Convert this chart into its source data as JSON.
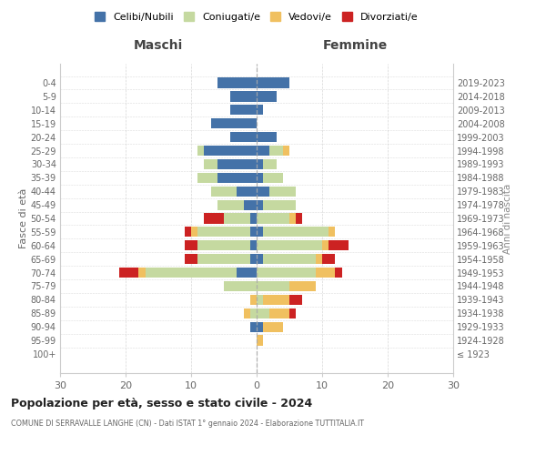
{
  "age_groups": [
    "100+",
    "95-99",
    "90-94",
    "85-89",
    "80-84",
    "75-79",
    "70-74",
    "65-69",
    "60-64",
    "55-59",
    "50-54",
    "45-49",
    "40-44",
    "35-39",
    "30-34",
    "25-29",
    "20-24",
    "15-19",
    "10-14",
    "5-9",
    "0-4"
  ],
  "birth_years": [
    "≤ 1923",
    "1924-1928",
    "1929-1933",
    "1934-1938",
    "1939-1943",
    "1944-1948",
    "1949-1953",
    "1954-1958",
    "1959-1963",
    "1964-1968",
    "1969-1973",
    "1974-1978",
    "1979-1983",
    "1984-1988",
    "1989-1993",
    "1994-1998",
    "1999-2003",
    "2004-2008",
    "2009-2013",
    "2014-2018",
    "2019-2023"
  ],
  "males": {
    "celibi": [
      0,
      0,
      1,
      0,
      0,
      0,
      3,
      1,
      1,
      1,
      1,
      2,
      3,
      6,
      6,
      8,
      4,
      7,
      4,
      4,
      6
    ],
    "coniugati": [
      0,
      0,
      0,
      1,
      0,
      5,
      14,
      8,
      8,
      8,
      4,
      4,
      4,
      3,
      2,
      1,
      0,
      0,
      0,
      0,
      0
    ],
    "vedovi": [
      0,
      0,
      0,
      1,
      1,
      0,
      1,
      0,
      0,
      1,
      0,
      0,
      0,
      0,
      0,
      0,
      0,
      0,
      0,
      0,
      0
    ],
    "divorziati": [
      0,
      0,
      0,
      0,
      0,
      0,
      3,
      2,
      2,
      1,
      3,
      0,
      0,
      0,
      0,
      0,
      0,
      0,
      0,
      0,
      0
    ]
  },
  "females": {
    "nubili": [
      0,
      0,
      1,
      0,
      0,
      0,
      0,
      1,
      0,
      1,
      0,
      1,
      2,
      1,
      1,
      2,
      3,
      0,
      1,
      3,
      5
    ],
    "coniugate": [
      0,
      0,
      0,
      2,
      1,
      5,
      9,
      8,
      10,
      10,
      5,
      5,
      4,
      3,
      2,
      2,
      0,
      0,
      0,
      0,
      0
    ],
    "vedove": [
      0,
      1,
      3,
      3,
      4,
      4,
      3,
      1,
      1,
      1,
      1,
      0,
      0,
      0,
      0,
      1,
      0,
      0,
      0,
      0,
      0
    ],
    "divorziate": [
      0,
      0,
      0,
      1,
      2,
      0,
      1,
      2,
      3,
      0,
      1,
      0,
      0,
      0,
      0,
      0,
      0,
      0,
      0,
      0,
      0
    ]
  },
  "colors": {
    "celibi": "#4472a8",
    "coniugati": "#c5d9a0",
    "vedovi": "#f0c060",
    "divorziati": "#cc2222"
  },
  "legend_labels": [
    "Celibi/Nubili",
    "Coniugati/e",
    "Vedovi/e",
    "Divorziati/e"
  ],
  "title1": "Popolazione per età, sesso e stato civile - 2024",
  "title2": "COMUNE DI SERRAVALLE LANGHE (CN) - Dati ISTAT 1° gennaio 2024 - Elaborazione TUTTITALIA.IT",
  "xlabel_left": "Maschi",
  "xlabel_right": "Femmine",
  "ylabel_left": "Fasce di età",
  "ylabel_right": "Anni di nascita",
  "xlim": 30,
  "background_color": "#ffffff",
  "grid_color": "#cccccc"
}
